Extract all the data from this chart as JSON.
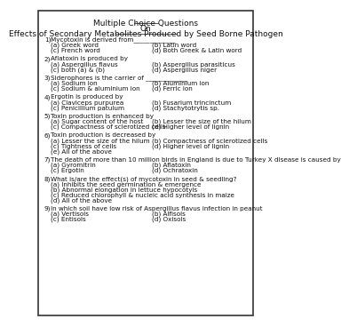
{
  "title1": "Multiple Choice Questions",
  "title2": "On",
  "title3": "Effects of Secondary Metabolites Produced by Seed Borne Pathogen",
  "bg_color": "#ffffff",
  "border_color": "#333333",
  "text_color": "#111111",
  "title_fontsize": 6.5,
  "body_fontsize": 5.2,
  "questions": [
    {
      "num": "1)",
      "question": "Mycotoxin is derived from_____________",
      "options": [
        [
          "(a) Greek word",
          "(b) Latin word"
        ],
        [
          "(c) French word",
          "(d) Both Greek & Latin word"
        ]
      ]
    },
    {
      "num": "2)",
      "question": "Aflatoxin is produced by",
      "options": [
        [
          "(a) Aspergillus flavus",
          "(b) Aspergillus parasiticus"
        ],
        [
          "(c) both (a) & (b)",
          "(d) Aspergillus niger"
        ]
      ]
    },
    {
      "num": "3)",
      "question": "Siderophores is the carrier of _____________",
      "options": [
        [
          "(a) Sodium ion",
          "(b) Aluminium ion"
        ],
        [
          "(c) Sodium & aluminium ion",
          "(d) Ferric ion"
        ]
      ]
    },
    {
      "num": "4)",
      "question": "Ergotin is produced by",
      "options": [
        [
          "(a) Claviceps purpurea",
          "(b) Fusarium trincinctum"
        ],
        [
          "(c) Penicillium patulum",
          "(d) Stachytotrytis sp."
        ]
      ]
    },
    {
      "num": "5)",
      "question": "Toxin production is enhanced by",
      "options": [
        [
          "(a) Sugar content of the host",
          "(b) Lesser the size of the hilum"
        ],
        [
          "(c) Compactness of sclerotized cells",
          "(d) Higher level of lignin"
        ]
      ]
    },
    {
      "num": "6)",
      "question": "Toxin production is decreased by",
      "options": [
        [
          "(a) Lesser the size of the hilum",
          "(b) Compactness of sclerotized cells"
        ],
        [
          "(c) Tightness of cells",
          "(d) Higher level of lignin"
        ],
        [
          "(e) All of the above",
          ""
        ]
      ]
    },
    {
      "num": "7)",
      "question": "The death of more than 10 million birds in England is due to Turkey X disease is caused by",
      "options": [
        [
          "(a) Gyromitrin",
          "(b) Aflatoxin"
        ],
        [
          "(c) Ergotin",
          "(d) Ochratoxin"
        ]
      ]
    },
    {
      "num": "8)",
      "question": "What is/are the effect(s) of mycotoxin in seed & seedling?",
      "options_single": [
        "(a) Inhibits the seed germination & emergence",
        "(b) Abnormal elongation in lettuce hypocotyls",
        "(c) Reduced chlorophyll & nucleic acid synthesis in maize",
        "(d) All of the above"
      ]
    },
    {
      "num": "9)",
      "question": "In which soil have low risk of Aspergillus flavus infection in peanut",
      "options": [
        [
          "(a) Vertisols",
          "(b) Alfisols"
        ],
        [
          "(c) Entisols",
          "(d) Oxisols"
        ]
      ]
    }
  ]
}
